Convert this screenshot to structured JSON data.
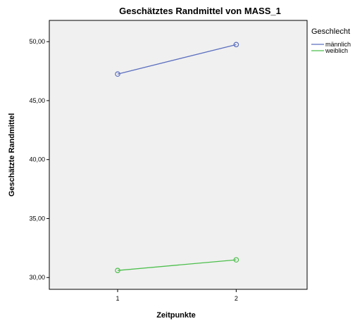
{
  "chart_data": {
    "type": "line",
    "title": "Geschätztes Randmittel von MASS_1",
    "xlabel": "Zeitpunkte",
    "ylabel": "Geschätzte Randmittel",
    "categories": [
      "1",
      "2"
    ],
    "ylim": [
      29,
      51.8
    ],
    "yticks": [
      "30,00",
      "35,00",
      "40,00",
      "45,00",
      "50,00"
    ],
    "ytick_values": [
      30,
      35,
      40,
      45,
      50
    ],
    "grid": false,
    "legend_title": "Geschlecht",
    "legend_position": "right",
    "series": [
      {
        "name": "männlich",
        "values": [
          47.25,
          49.75
        ],
        "color": "#5b6fbf"
      },
      {
        "name": "weiblich",
        "values": [
          30.6,
          31.5
        ],
        "color": "#4cbf4c"
      }
    ],
    "plot_background": "#f0f0f0"
  }
}
